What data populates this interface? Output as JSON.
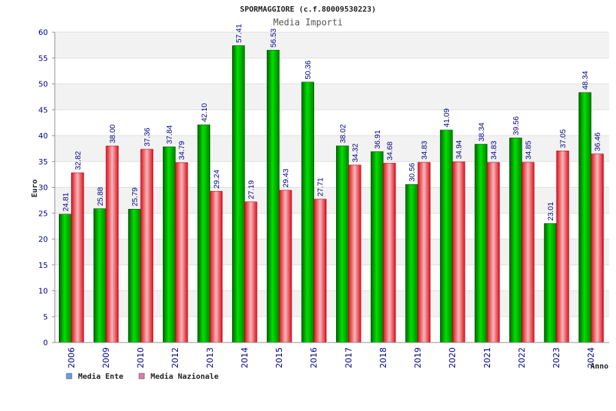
{
  "chart_data": {
    "type": "bar",
    "title": "SPORMAGGIORE (c.f.80009530223)",
    "subtitle": "Media Importi",
    "ylabel": "Euro",
    "xlabel": "Anno",
    "ylim": [
      0,
      60
    ],
    "ytick_step": 5,
    "grid": true,
    "legend_position": "bottom-left",
    "categories": [
      "2006",
      "2009",
      "2010",
      "2012",
      "2013",
      "2014",
      "2015",
      "2016",
      "2017",
      "2018",
      "2019",
      "2020",
      "2021",
      "2022",
      "2023",
      "2024"
    ],
    "series": [
      {
        "name": "Media Ente",
        "color": "#00c000",
        "legend_color": "#6aa0e0",
        "values": [
          24.81,
          25.88,
          25.79,
          37.84,
          42.1,
          57.41,
          56.53,
          50.36,
          38.02,
          36.91,
          30.56,
          41.09,
          38.34,
          39.56,
          23.01,
          48.34
        ],
        "labels": [
          "24.81",
          "25.88",
          "25.79",
          "37.84",
          "42.10",
          "57.41",
          "56.53",
          "50.36",
          "38.02",
          "36.91",
          "30.56",
          "41.09",
          "38.34",
          "39.56",
          "23.01",
          "48.34"
        ]
      },
      {
        "name": "Media Nazionale",
        "color": "#e0202a",
        "legend_color": "#e07aa8",
        "values": [
          32.82,
          38.0,
          37.36,
          34.79,
          29.24,
          27.19,
          29.43,
          27.71,
          34.32,
          34.68,
          34.83,
          34.94,
          34.83,
          34.85,
          37.05,
          36.46
        ],
        "labels": [
          "32.82",
          "38.00",
          "37.36",
          "34.79",
          "29.24",
          "27.19",
          "29.43",
          "27.71",
          "34.32",
          "34.68",
          "34.83",
          "34.94",
          "34.83",
          "34.85",
          "37.05",
          "36.46"
        ]
      }
    ]
  }
}
